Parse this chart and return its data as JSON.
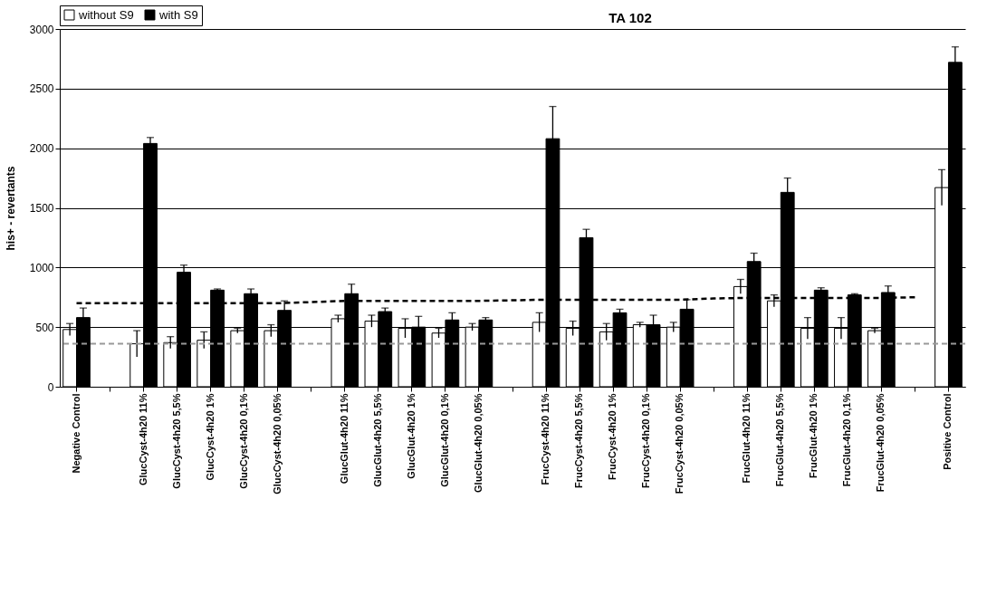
{
  "chart_data": {
    "type": "bar",
    "title": "TA 102",
    "ylabel": "his+ - revertants",
    "categories": [
      "Negative Control",
      null,
      "GlucCyst-4h20 11%",
      "GlucCyst-4h20 5,5%",
      "GlucCyst-4h20 1%",
      "GlucCyst-4h20 0,1%",
      "GlucCyst-4h20 0,05%",
      null,
      "GlucGlut-4h20 11%",
      "GlucGlut-4h20 5,5%",
      "GlucGlut-4h20 1%",
      "GlucGlut-4h20 0,1%",
      "GlucGlut-4h20 0,05%",
      null,
      "FrucCyst-4h20 11%",
      "FrucCyst-4h20 5,5%",
      "FrucCyst-4h20 1%",
      "FrucCyst-4h20 0,1%",
      "FrucCyst-4h20 0,05%",
      null,
      "FrucGlut-4h20 11%",
      "FrucGlut-4h20 5,5%",
      "FrucGlut-4h20 1%",
      "FrucGlut-4h20 0,1%",
      "FrucGlut-4h20 0,05%",
      null,
      "Positive Control"
    ],
    "series": [
      {
        "name": "without S9",
        "color": "#ffffff",
        "values": [
          480,
          null,
          360,
          370,
          390,
          470,
          470,
          null,
          570,
          550,
          490,
          450,
          500,
          null,
          540,
          490,
          460,
          520,
          500,
          null,
          840,
          720,
          490,
          490,
          470,
          null,
          1670
        ],
        "errors": [
          50,
          null,
          110,
          50,
          70,
          20,
          50,
          null,
          30,
          50,
          80,
          40,
          30,
          null,
          80,
          60,
          70,
          20,
          40,
          null,
          60,
          50,
          90,
          90,
          20,
          null,
          150
        ]
      },
      {
        "name": "with S9",
        "color": "#000000",
        "values": [
          580,
          null,
          2040,
          960,
          810,
          780,
          640,
          null,
          780,
          630,
          500,
          560,
          560,
          null,
          2080,
          1250,
          620,
          520,
          650,
          null,
          1050,
          1630,
          810,
          770,
          790,
          null,
          2720
        ],
        "errors": [
          80,
          null,
          50,
          60,
          10,
          40,
          80,
          null,
          80,
          30,
          90,
          60,
          20,
          null,
          270,
          70,
          30,
          80,
          80,
          null,
          70,
          120,
          20,
          10,
          55,
          null,
          130
        ]
      },
      {
        "type": "line",
        "color": "#000000",
        "line_style": "dashed",
        "values": [
          700,
          700,
          700,
          700,
          700,
          700,
          700,
          710,
          720,
          720,
          720,
          720,
          720,
          725,
          730,
          730,
          730,
          730,
          730,
          740,
          745,
          745,
          745,
          745,
          745,
          750,
          null
        ]
      }
    ],
    "ref_lines": [
      {
        "axis": "y",
        "value": 360,
        "color": "#999999",
        "line_style": "dashed"
      }
    ],
    "ylim": [
      0,
      3000
    ],
    "yticks": [
      0,
      500,
      1000,
      1500,
      2000,
      2500,
      3000
    ],
    "grid": "y",
    "legend": "top"
  }
}
